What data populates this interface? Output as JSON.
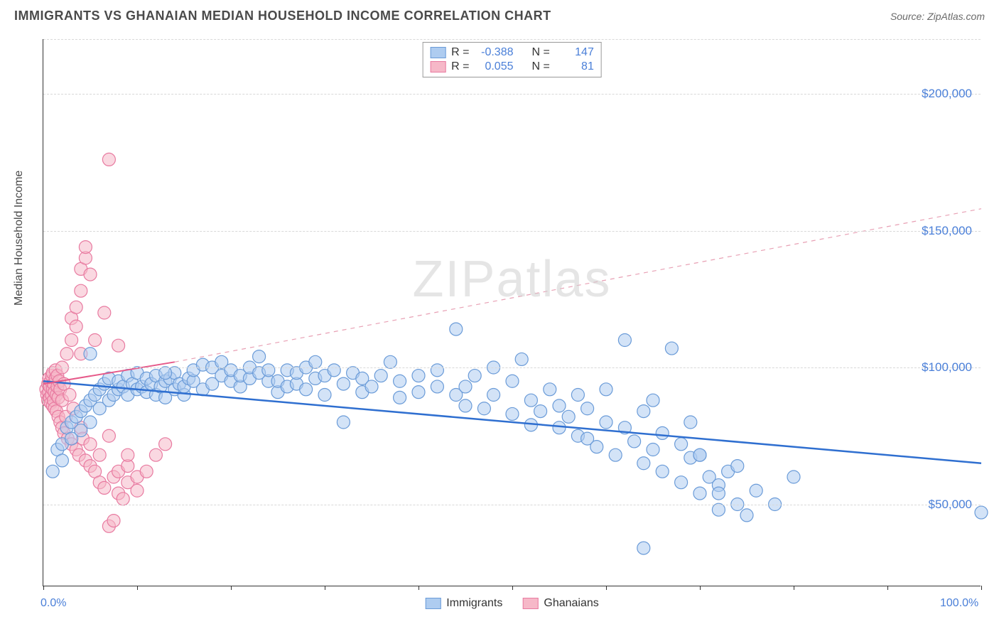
{
  "title": "IMMIGRANTS VS GHANAIAN MEDIAN HOUSEHOLD INCOME CORRELATION CHART",
  "source_label": "Source: ZipAtlas.com",
  "watermark": "ZIPatlas",
  "ylabel": "Median Household Income",
  "chart": {
    "type": "scatter",
    "xlim": [
      0,
      100
    ],
    "ylim": [
      20000,
      220000
    ],
    "x_tick_positions": [
      0,
      10,
      20,
      30,
      40,
      50,
      60,
      70,
      80,
      90,
      100
    ],
    "x_tick_labels_shown": {
      "0": "0.0%",
      "100": "100.0%"
    },
    "y_gridlines": [
      50000,
      100000,
      150000,
      200000
    ],
    "y_tick_labels": [
      "$50,000",
      "$100,000",
      "$150,000",
      "$200,000"
    ],
    "y_tick_fontsize": 17,
    "y_tick_color": "#4a7fd8",
    "x_tick_fontsize": 16,
    "x_tick_color": "#4a7fd8",
    "grid_color": "#d8d8d8",
    "grid_dash": "4 4",
    "axis_color": "#333333",
    "background_color": "#ffffff",
    "series": [
      {
        "name": "Immigrants",
        "fill_color": "#aeccf0",
        "stroke_color": "#6a9bd8",
        "fill_opacity": 0.55,
        "marker_radius": 9,
        "R": "-0.388",
        "N": "147",
        "trend_solid": {
          "x1": 0,
          "y1": 95000,
          "x2": 100,
          "y2": 65000,
          "color": "#2f6fd0",
          "width": 2.5
        },
        "points": [
          [
            1,
            62000
          ],
          [
            1.5,
            70000
          ],
          [
            2,
            66000
          ],
          [
            2,
            72000
          ],
          [
            2.5,
            78000
          ],
          [
            3,
            74000
          ],
          [
            3,
            80000
          ],
          [
            3.5,
            82000
          ],
          [
            4,
            77000
          ],
          [
            4,
            84000
          ],
          [
            4.5,
            86000
          ],
          [
            5,
            80000
          ],
          [
            5,
            88000
          ],
          [
            5.5,
            90000
          ],
          [
            6,
            85000
          ],
          [
            6,
            92000
          ],
          [
            6.5,
            94000
          ],
          [
            7,
            88000
          ],
          [
            7,
            96000
          ],
          [
            7.5,
            90000
          ],
          [
            8,
            92000
          ],
          [
            8,
            95000
          ],
          [
            8.5,
            93000
          ],
          [
            9,
            90000
          ],
          [
            9,
            97000
          ],
          [
            9.5,
            94000
          ],
          [
            10,
            92000
          ],
          [
            10,
            98000
          ],
          [
            10.5,
            93000
          ],
          [
            11,
            91000
          ],
          [
            11,
            96000
          ],
          [
            11.5,
            94000
          ],
          [
            12,
            90000
          ],
          [
            12,
            97000
          ],
          [
            12.5,
            93000
          ],
          [
            13,
            89000
          ],
          [
            13,
            95000
          ],
          [
            13.5,
            96000
          ],
          [
            14,
            92000
          ],
          [
            14,
            98000
          ],
          [
            14.5,
            94000
          ],
          [
            15,
            90000
          ],
          [
            15,
            93000
          ],
          [
            15.5,
            96000
          ],
          [
            16,
            95000
          ],
          [
            16,
            99000
          ],
          [
            17,
            101000
          ],
          [
            17,
            92000
          ],
          [
            18,
            94000
          ],
          [
            18,
            100000
          ],
          [
            19,
            97000
          ],
          [
            19,
            102000
          ],
          [
            20,
            95000
          ],
          [
            20,
            99000
          ],
          [
            21,
            93000
          ],
          [
            21,
            97000
          ],
          [
            22,
            96000
          ],
          [
            22,
            100000
          ],
          [
            23,
            98000
          ],
          [
            23,
            104000
          ],
          [
            24,
            95000
          ],
          [
            24,
            99000
          ],
          [
            25,
            91000
          ],
          [
            25,
            95000
          ],
          [
            26,
            93000
          ],
          [
            26,
            99000
          ],
          [
            27,
            94000
          ],
          [
            27,
            98000
          ],
          [
            28,
            92000
          ],
          [
            28,
            100000
          ],
          [
            29,
            96000
          ],
          [
            29,
            102000
          ],
          [
            30,
            90000
          ],
          [
            30,
            97000
          ],
          [
            31,
            99000
          ],
          [
            32,
            94000
          ],
          [
            32,
            80000
          ],
          [
            33,
            98000
          ],
          [
            34,
            91000
          ],
          [
            34,
            96000
          ],
          [
            35,
            93000
          ],
          [
            36,
            97000
          ],
          [
            37,
            102000
          ],
          [
            38,
            89000
          ],
          [
            38,
            95000
          ],
          [
            40,
            91000
          ],
          [
            40,
            97000
          ],
          [
            42,
            93000
          ],
          [
            42,
            99000
          ],
          [
            44,
            90000
          ],
          [
            44,
            114000
          ],
          [
            45,
            86000
          ],
          [
            45,
            93000
          ],
          [
            46,
            97000
          ],
          [
            47,
            85000
          ],
          [
            48,
            90000
          ],
          [
            48,
            100000
          ],
          [
            50,
            83000
          ],
          [
            50,
            95000
          ],
          [
            51,
            103000
          ],
          [
            52,
            79000
          ],
          [
            52,
            88000
          ],
          [
            53,
            84000
          ],
          [
            54,
            92000
          ],
          [
            55,
            78000
          ],
          [
            55,
            86000
          ],
          [
            56,
            82000
          ],
          [
            57,
            75000
          ],
          [
            57,
            90000
          ],
          [
            58,
            74000
          ],
          [
            58,
            85000
          ],
          [
            59,
            71000
          ],
          [
            60,
            80000
          ],
          [
            60,
            92000
          ],
          [
            61,
            68000
          ],
          [
            62,
            78000
          ],
          [
            62,
            110000
          ],
          [
            63,
            73000
          ],
          [
            64,
            65000
          ],
          [
            64,
            84000
          ],
          [
            65,
            70000
          ],
          [
            65,
            88000
          ],
          [
            66,
            62000
          ],
          [
            66,
            76000
          ],
          [
            67,
            107000
          ],
          [
            68,
            58000
          ],
          [
            68,
            72000
          ],
          [
            69,
            67000
          ],
          [
            69,
            80000
          ],
          [
            70,
            54000
          ],
          [
            70,
            68000
          ],
          [
            71,
            60000
          ],
          [
            72,
            57000
          ],
          [
            72,
            48000
          ],
          [
            73,
            62000
          ],
          [
            74,
            50000
          ],
          [
            74,
            64000
          ],
          [
            75,
            46000
          ],
          [
            76,
            55000
          ],
          [
            78,
            50000
          ],
          [
            80,
            60000
          ],
          [
            64,
            34000
          ],
          [
            70,
            68000
          ],
          [
            72,
            54000
          ],
          [
            100,
            47000
          ],
          [
            5,
            105000
          ],
          [
            13,
            98000
          ]
        ]
      },
      {
        "name": "Ghanaians",
        "fill_color": "#f6b8c8",
        "stroke_color": "#e87aa0",
        "fill_opacity": 0.55,
        "marker_radius": 9,
        "R": "0.055",
        "N": "81",
        "trend_solid": {
          "x1": 0,
          "y1": 94000,
          "x2": 14,
          "y2": 102000,
          "color": "#e65a8a",
          "width": 2
        },
        "trend_dashed": {
          "x1": 14,
          "y1": 102000,
          "x2": 100,
          "y2": 158000,
          "color": "#e8a0b4",
          "width": 1.2,
          "dash": "6 6"
        },
        "points": [
          [
            0.3,
            92000
          ],
          [
            0.4,
            90000
          ],
          [
            0.5,
            88000
          ],
          [
            0.5,
            94000
          ],
          [
            0.6,
            91000
          ],
          [
            0.6,
            96000
          ],
          [
            0.7,
            89000
          ],
          [
            0.7,
            93000
          ],
          [
            0.8,
            87000
          ],
          [
            0.8,
            95000
          ],
          [
            0.9,
            90000
          ],
          [
            0.9,
            97000
          ],
          [
            1,
            86000
          ],
          [
            1,
            92000
          ],
          [
            1,
            98000
          ],
          [
            1.1,
            88000
          ],
          [
            1.1,
            94000
          ],
          [
            1.2,
            85000
          ],
          [
            1.2,
            91000
          ],
          [
            1.3,
            96000
          ],
          [
            1.3,
            99000
          ],
          [
            1.4,
            84000
          ],
          [
            1.4,
            90000
          ],
          [
            1.5,
            93000
          ],
          [
            1.5,
            97000
          ],
          [
            1.6,
            82000
          ],
          [
            1.6,
            89000
          ],
          [
            1.7,
            95000
          ],
          [
            1.8,
            80000
          ],
          [
            1.8,
            92000
          ],
          [
            2,
            78000
          ],
          [
            2,
            88000
          ],
          [
            2,
            100000
          ],
          [
            2.2,
            76000
          ],
          [
            2.2,
            94000
          ],
          [
            2.4,
            82000
          ],
          [
            2.5,
            105000
          ],
          [
            2.6,
            74000
          ],
          [
            2.8,
            90000
          ],
          [
            3,
            72000
          ],
          [
            3,
            110000
          ],
          [
            3,
            118000
          ],
          [
            3.2,
            85000
          ],
          [
            3.5,
            70000
          ],
          [
            3.5,
            115000
          ],
          [
            3.5,
            122000
          ],
          [
            3.8,
            68000
          ],
          [
            4,
            78000
          ],
          [
            4,
            128000
          ],
          [
            4,
            136000
          ],
          [
            4.2,
            74000
          ],
          [
            4.5,
            66000
          ],
          [
            4.5,
            140000
          ],
          [
            4.5,
            144000
          ],
          [
            5,
            64000
          ],
          [
            5,
            72000
          ],
          [
            5,
            134000
          ],
          [
            5.5,
            62000
          ],
          [
            5.5,
            110000
          ],
          [
            6,
            58000
          ],
          [
            6,
            68000
          ],
          [
            6.5,
            56000
          ],
          [
            6.5,
            120000
          ],
          [
            7,
            75000
          ],
          [
            7,
            176000
          ],
          [
            7.5,
            60000
          ],
          [
            8,
            54000
          ],
          [
            8,
            62000
          ],
          [
            8,
            108000
          ],
          [
            8.5,
            52000
          ],
          [
            9,
            58000
          ],
          [
            9,
            64000
          ],
          [
            9,
            68000
          ],
          [
            10,
            55000
          ],
          [
            10,
            60000
          ],
          [
            11,
            62000
          ],
          [
            12,
            68000
          ],
          [
            13,
            72000
          ],
          [
            7,
            42000
          ],
          [
            7.5,
            44000
          ],
          [
            4,
            105000
          ]
        ]
      }
    ]
  },
  "legend_top": {
    "border_color": "#999999",
    "rows": [
      {
        "swatch_fill": "#aeccf0",
        "swatch_border": "#6a9bd8",
        "R_label": "R =",
        "R_val": "-0.388",
        "N_label": "N =",
        "N_val": "147"
      },
      {
        "swatch_fill": "#f6b8c8",
        "swatch_border": "#e87aa0",
        "R_label": "R =",
        "R_val": "0.055",
        "N_label": "N =",
        "N_val": "81"
      }
    ]
  },
  "legend_bottom": [
    {
      "swatch_fill": "#aeccf0",
      "swatch_border": "#6a9bd8",
      "label": "Immigrants"
    },
    {
      "swatch_fill": "#f6b8c8",
      "swatch_border": "#e87aa0",
      "label": "Ghanaians"
    }
  ]
}
